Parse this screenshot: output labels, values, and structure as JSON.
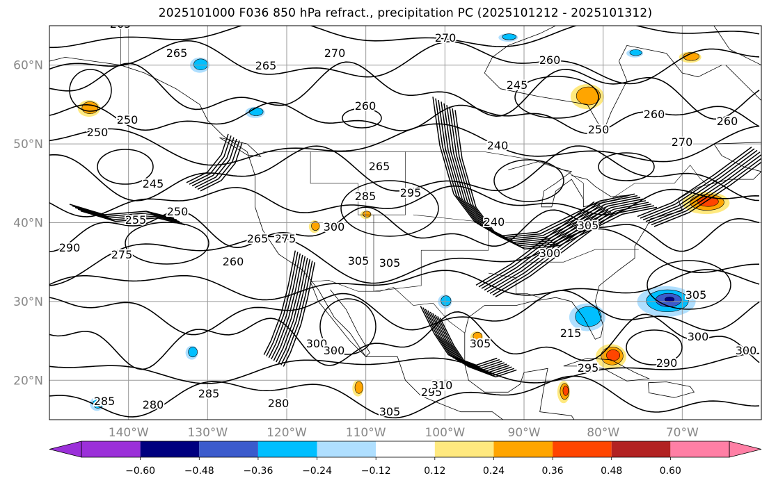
{
  "title": "2025101000 F036 850 hPa refract., precipitation PC (2025101212 - 2025101312)",
  "map": {
    "lat_labels": [
      "60°N",
      "50°N",
      "40°N",
      "30°N",
      "20°N"
    ],
    "lon_labels": [
      "140°W",
      "130°W",
      "120°W",
      "110°W",
      "100°W",
      "90°W",
      "80°W",
      "70°W"
    ],
    "contour_labels": [
      "265",
      "265",
      "265",
      "270",
      "270",
      "260",
      "260",
      "260",
      "250",
      "250",
      "240",
      "245",
      "255",
      "250",
      "275",
      "290",
      "285",
      "285",
      "285",
      "280",
      "280",
      "260",
      "265",
      "275",
      "300",
      "305",
      "305",
      "295",
      "265",
      "250",
      "245",
      "240",
      "215",
      "305",
      "300",
      "300",
      "295",
      "290",
      "305",
      "300",
      "300",
      "295",
      "305",
      "300",
      "305",
      "310",
      "270",
      "260"
    ],
    "precip_features": [
      {
        "lat": 60.0,
        "lon": -131.0,
        "rx": 14,
        "ry": 11,
        "level": "blue"
      },
      {
        "lat": 54.5,
        "lon": -145.0,
        "rx": 16,
        "ry": 12,
        "level": "orange"
      },
      {
        "lat": 54.0,
        "lon": -124.0,
        "rx": 14,
        "ry": 8,
        "level": "blue"
      },
      {
        "lat": 56.0,
        "lon": -82.0,
        "rx": 24,
        "ry": 18,
        "level": "orange"
      },
      {
        "lat": 61.0,
        "lon": -69.0,
        "rx": 16,
        "ry": 8,
        "level": "orange"
      },
      {
        "lat": 42.5,
        "lon": -67.0,
        "rx": 34,
        "ry": 16,
        "level": "red"
      },
      {
        "lat": 30.0,
        "lon": -72.0,
        "rx": 42,
        "ry": 22,
        "level": "navy"
      },
      {
        "lat": 28.0,
        "lon": -82.0,
        "rx": 26,
        "ry": 20,
        "level": "blue"
      },
      {
        "lat": 23.0,
        "lon": -79.0,
        "rx": 22,
        "ry": 18,
        "level": "red"
      },
      {
        "lat": 18.5,
        "lon": -85.0,
        "rx": 9,
        "ry": 16,
        "level": "red"
      },
      {
        "lat": 30.0,
        "lon": -100.0,
        "rx": 10,
        "ry": 10,
        "level": "blue"
      },
      {
        "lat": 25.5,
        "lon": -96.0,
        "rx": 9,
        "ry": 8,
        "level": "orange"
      },
      {
        "lat": 39.5,
        "lon": -116.5,
        "rx": 8,
        "ry": 9,
        "level": "orange"
      },
      {
        "lat": 41.0,
        "lon": -110.0,
        "rx": 8,
        "ry": 6,
        "level": "orange"
      },
      {
        "lat": 23.5,
        "lon": -132.0,
        "rx": 9,
        "ry": 10,
        "level": "blue"
      },
      {
        "lat": 17.0,
        "lon": -144.0,
        "rx": 10,
        "ry": 10,
        "level": "blue"
      },
      {
        "lat": 19.0,
        "lon": -111.0,
        "rx": 8,
        "ry": 12,
        "level": "orange"
      },
      {
        "lat": 63.5,
        "lon": -92.0,
        "rx": 14,
        "ry": 6,
        "level": "blue"
      },
      {
        "lat": 61.5,
        "lon": -76.0,
        "rx": 12,
        "ry": 6,
        "level": "blue"
      }
    ]
  },
  "colorbar": {
    "tick_labels": [
      "−0.60",
      "−0.48",
      "−0.36",
      "−0.24",
      "−0.12",
      "0.12",
      "0.24",
      "0.36",
      "0.48",
      "0.60"
    ],
    "colors": {
      "below": "#9b30d9",
      "n060_n048": "#00007f",
      "n048_n036": "#3b5bcc",
      "n036_n024": "#00bfff",
      "n024_n012": "#afdfff",
      "n012_p012": "#ffffff",
      "p012_p024": "#ffe97f",
      "p024_p036": "#ffa500",
      "p036_p048": "#ff4500",
      "p048_p060": "#b22222",
      "above": "#ff7fa5"
    }
  }
}
